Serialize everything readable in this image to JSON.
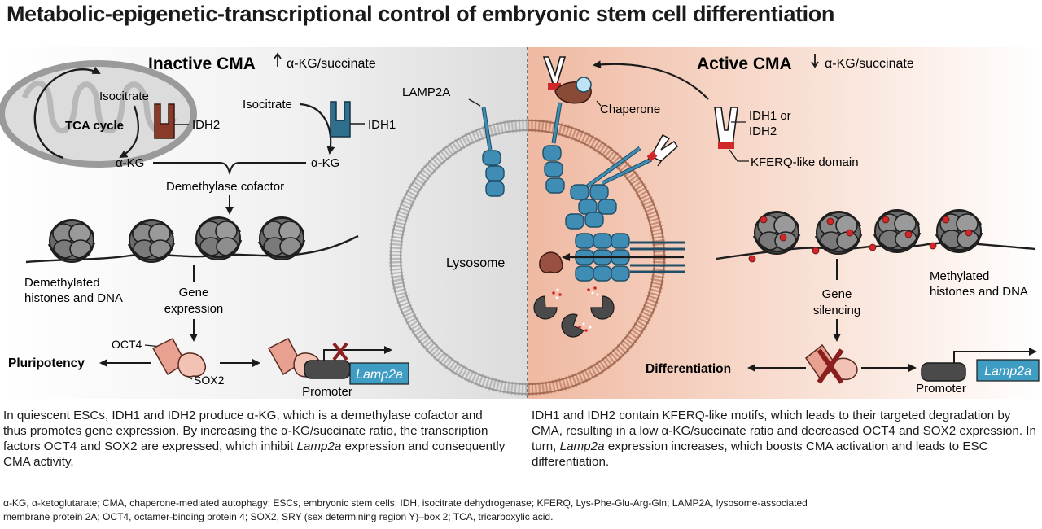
{
  "title": "Metabolic-epigenetic-transcriptional control of embryonic stem cell differentiation",
  "left_panel": {
    "heading": "Inactive CMA",
    "ratio_label": "α-KG/succinate",
    "tca_cycle": "TCA cycle",
    "isocitrate_mito": "Isocitrate",
    "idh2": "IDH2",
    "akg_mito": "α-KG",
    "isocitrate_cyto": "Isocitrate",
    "idh1": "IDH1",
    "akg_cyto": "α-KG",
    "demethylase_cofactor": "Demethylase cofactor",
    "demethylated_line1": "Demethylated",
    "demethylated_line2": "histones and DNA",
    "gene_expression_line1": "Gene",
    "gene_expression_line2": "expression",
    "oct4": "OCT4",
    "sox2": "SOX2",
    "pluripotency": "Pluripotency",
    "promoter": "Promoter",
    "gene": "Lamp2a"
  },
  "center": {
    "lamp2a": "LAMP2A",
    "lysosome": "Lysosome"
  },
  "right_panel": {
    "heading": "Active CMA",
    "ratio_label": "α-KG/succinate",
    "chaperone": "Chaperone",
    "idh_line1": "IDH1 or",
    "idh_line2": "IDH2",
    "kferq": "KFERQ-like domain",
    "methylated_line1": "Methylated",
    "methylated_line2": "histones and DNA",
    "gene_silencing_line1": "Gene",
    "gene_silencing_line2": "silencing",
    "differentiation": "Differentiation",
    "promoter": "Promoter",
    "gene": "Lamp2a"
  },
  "captions": {
    "left_part1": "In quiescent ESCs, IDH1 and IDH2 produce α-KG, which is a demethylase cofactor and thus promotes gene expression. By increasing the α-KG/succinate ratio, the transcription factors OCT4 and SOX2 are expressed, which inhibit ",
    "left_italic": "Lamp2a",
    "left_part2": " expression and consequently CMA activity.",
    "right_part1": "IDH1 and IDH2 contain KFERQ-like motifs, which leads to their targeted degradation by CMA, resulting in a low α-KG/succinate ratio and decreased OCT4 and SOX2 expression. In turn, ",
    "right_italic": "Lamp2a",
    "right_part2": " expression increases, which boosts CMA activation and leads to ESC differentiation."
  },
  "footnote": "α-KG, α-ketoglutarate; CMA, chaperone-mediated autophagy; ESCs, embryonic stem cells; IDH, isocitrate dehydrogenase; KFERQ, Lys-Phe-Glu-Arg-Gln; LAMP2A, lysosome-associated membrane protein 2A; OCT4, octamer-binding protein 4; SOX2, SRY (sex determining region Y)–box 2; TCA, tricarboxylic acid.",
  "colors": {
    "idh2": "#8a3a28",
    "idh1": "#2f6f8c",
    "lamp2a": "#3f8db5",
    "gene_box": "#3f9dc4",
    "tf_pink": "#e8a090",
    "methyl_red": "#d0282a",
    "inhibit_x": "#8a1f1f",
    "right_bg": "#f6d6c8",
    "left_bg": "#e9e9e9"
  }
}
